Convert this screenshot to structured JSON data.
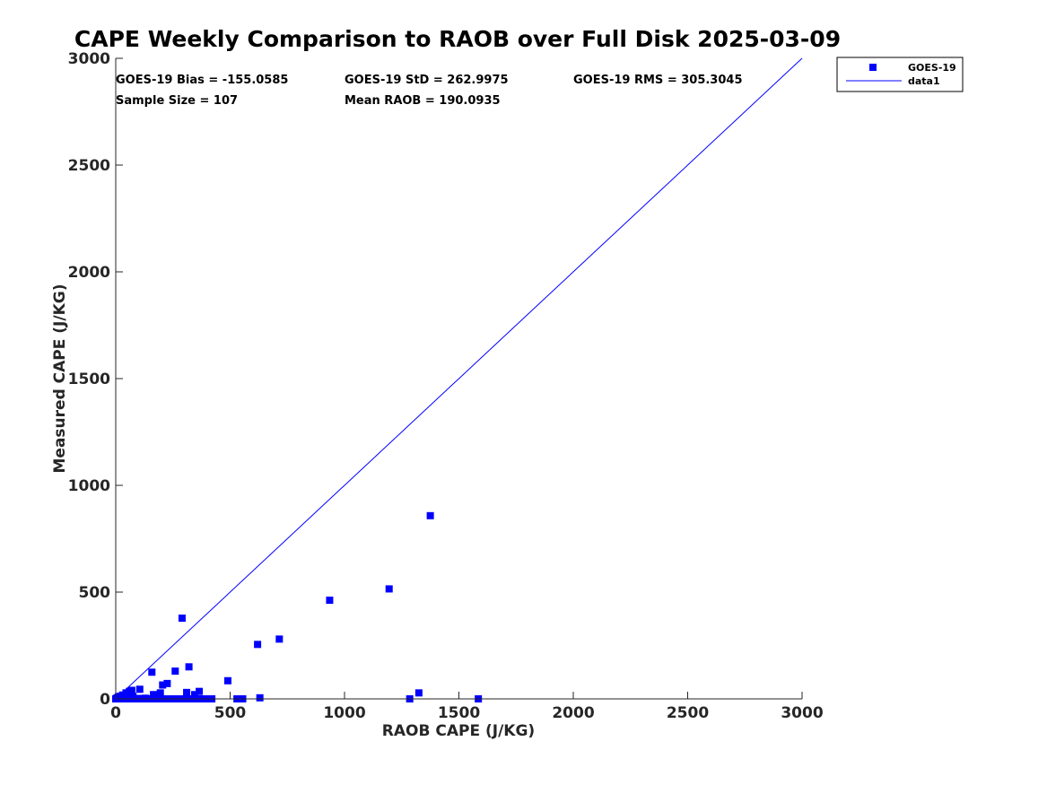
{
  "chart_data": {
    "type": "scatter",
    "title": "CAPE Weekly Comparison to RAOB over Full Disk 2025-03-09",
    "xlabel": "RAOB CAPE (J/KG)",
    "ylabel": "Measured CAPE (J/KG)",
    "xlim": [
      0,
      3000
    ],
    "ylim": [
      0,
      3000
    ],
    "xticks": [
      0,
      500,
      1000,
      1500,
      2000,
      2500,
      3000
    ],
    "yticks": [
      0,
      500,
      1000,
      1500,
      2000,
      2500,
      3000
    ],
    "grid": false,
    "legend_position": "top-right",
    "stats": [
      [
        "GOES-19 Bias = -155.0585",
        "GOES-19 StD = 262.9975",
        "GOES-19 RMS = 305.3045"
      ],
      [
        "Sample Size = 107",
        "Mean RAOB = 190.0935"
      ]
    ],
    "series": [
      {
        "name": "GOES-19",
        "kind": "scatter",
        "marker": "square",
        "color": "#0000ff",
        "points": [
          [
            0,
            0
          ],
          [
            4,
            3
          ],
          [
            8,
            5
          ],
          [
            12,
            10
          ],
          [
            16,
            4
          ],
          [
            20,
            12
          ],
          [
            25,
            0
          ],
          [
            30,
            18
          ],
          [
            35,
            6
          ],
          [
            40,
            0
          ],
          [
            45,
            28
          ],
          [
            50,
            10
          ],
          [
            55,
            0
          ],
          [
            60,
            35
          ],
          [
            65,
            0
          ],
          [
            70,
            40
          ],
          [
            75,
            12
          ],
          [
            80,
            0
          ],
          [
            90,
            0
          ],
          [
            100,
            2
          ],
          [
            105,
            45
          ],
          [
            110,
            0
          ],
          [
            120,
            0
          ],
          [
            130,
            3
          ],
          [
            140,
            0
          ],
          [
            150,
            0
          ],
          [
            158,
            125
          ],
          [
            165,
            20
          ],
          [
            175,
            0
          ],
          [
            185,
            0
          ],
          [
            195,
            28
          ],
          [
            205,
            65
          ],
          [
            215,
            0
          ],
          [
            225,
            72
          ],
          [
            245,
            0
          ],
          [
            260,
            130
          ],
          [
            270,
            0
          ],
          [
            290,
            378
          ],
          [
            300,
            0
          ],
          [
            310,
            30
          ],
          [
            320,
            150
          ],
          [
            330,
            0
          ],
          [
            345,
            20
          ],
          [
            355,
            0
          ],
          [
            365,
            35
          ],
          [
            375,
            0
          ],
          [
            390,
            0
          ],
          [
            405,
            0
          ],
          [
            420,
            0
          ],
          [
            490,
            85
          ],
          [
            530,
            0
          ],
          [
            555,
            0
          ],
          [
            620,
            255
          ],
          [
            630,
            5
          ],
          [
            715,
            280
          ],
          [
            935,
            462
          ],
          [
            1195,
            515
          ],
          [
            1285,
            0
          ],
          [
            1325,
            28
          ],
          [
            1375,
            858
          ],
          [
            1585,
            0
          ]
        ]
      },
      {
        "name": "data1",
        "kind": "line",
        "color": "#0000ff",
        "points": [
          [
            0,
            0
          ],
          [
            3000,
            3000
          ]
        ]
      }
    ]
  }
}
